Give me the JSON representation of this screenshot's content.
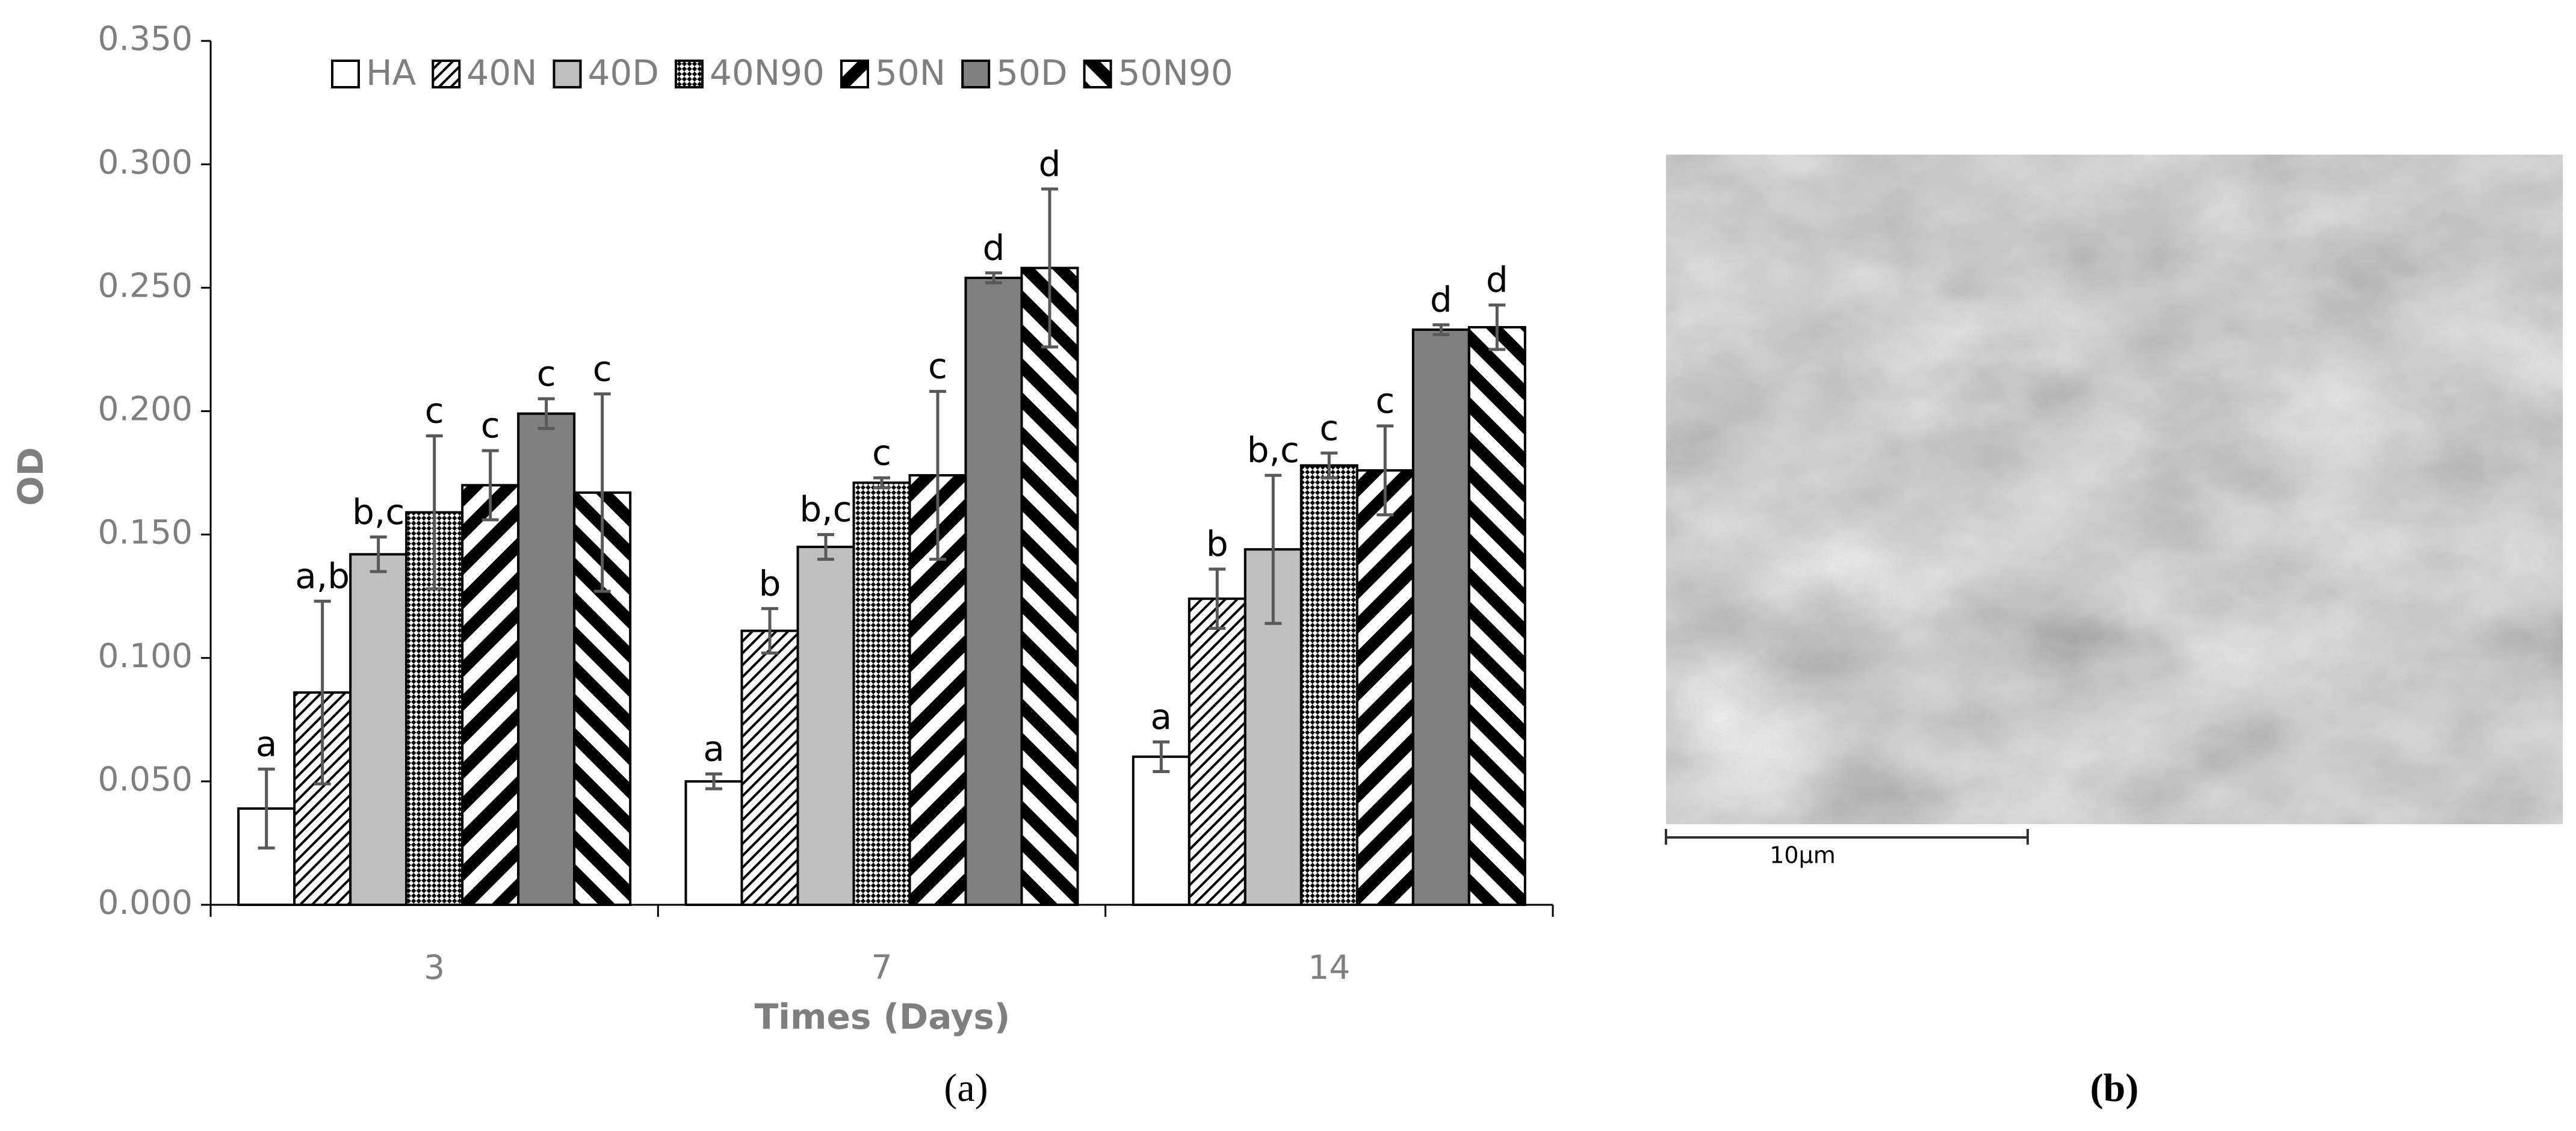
{
  "chart_data": {
    "type": "bar",
    "y_label": "OD",
    "x_label": "Times (Days)",
    "categories": [
      "3",
      "7",
      "14"
    ],
    "ylim": [
      0,
      0.35
    ],
    "yticks": [
      {
        "value": 0,
        "label": "0.000"
      },
      {
        "value": 0.05,
        "label": "0.050"
      },
      {
        "value": 0.1,
        "label": "0.100"
      },
      {
        "value": 0.15,
        "label": "0.150"
      },
      {
        "value": 0.2,
        "label": "0.200"
      },
      {
        "value": 0.25,
        "label": "0.250"
      },
      {
        "value": 0.3,
        "label": "0.300"
      },
      {
        "value": 0.35,
        "label": "0.350"
      }
    ],
    "grid": false,
    "legend": "top",
    "series": [
      {
        "name": "HA",
        "color": "#ffffff",
        "pattern": "none",
        "values": [
          0.039,
          0.05,
          0.06
        ],
        "errors": [
          0.016,
          0.003,
          0.006
        ],
        "value_labels": [
          "a",
          "a",
          "a"
        ]
      },
      {
        "name": "40N",
        "color": "#ffffff",
        "pattern": "fine-hatch",
        "values": [
          0.086,
          0.111,
          0.124
        ],
        "errors": [
          0.037,
          0.009,
          0.012
        ],
        "value_labels": [
          "a,b",
          "b",
          "b"
        ]
      },
      {
        "name": "40D",
        "color": "#bfbfbf",
        "pattern": "none",
        "values": [
          0.142,
          0.145,
          0.144
        ],
        "errors": [
          0.007,
          0.005,
          0.03
        ],
        "value_labels": [
          "b,c",
          "b,c",
          "b,c"
        ]
      },
      {
        "name": "40N90",
        "color": "#ffffff",
        "pattern": "checker",
        "values": [
          0.159,
          0.171,
          0.178
        ],
        "errors": [
          0.031,
          0.002,
          0.005
        ],
        "value_labels": [
          "c",
          "c",
          "c"
        ]
      },
      {
        "name": "50N",
        "color": "#ffffff",
        "pattern": "wide-hatch",
        "values": [
          0.17,
          0.174,
          0.176
        ],
        "errors": [
          0.014,
          0.034,
          0.018
        ],
        "value_labels": [
          "c",
          "c",
          "c"
        ]
      },
      {
        "name": "50D",
        "color": "#808080",
        "pattern": "none",
        "values": [
          0.199,
          0.254,
          0.233
        ],
        "errors": [
          0.006,
          0.002,
          0.002
        ],
        "value_labels": [
          "c",
          "d",
          "d"
        ]
      },
      {
        "name": "50N90",
        "color": "#ffffff",
        "pattern": "wide-back-hatch",
        "values": [
          0.167,
          0.258,
          0.234
        ],
        "errors": [
          0.04,
          0.032,
          0.009
        ],
        "value_labels": [
          "c",
          "d",
          "d"
        ]
      }
    ]
  },
  "panel_a": "(a)",
  "panel_b": "(b)",
  "scale_bar": "10μm"
}
